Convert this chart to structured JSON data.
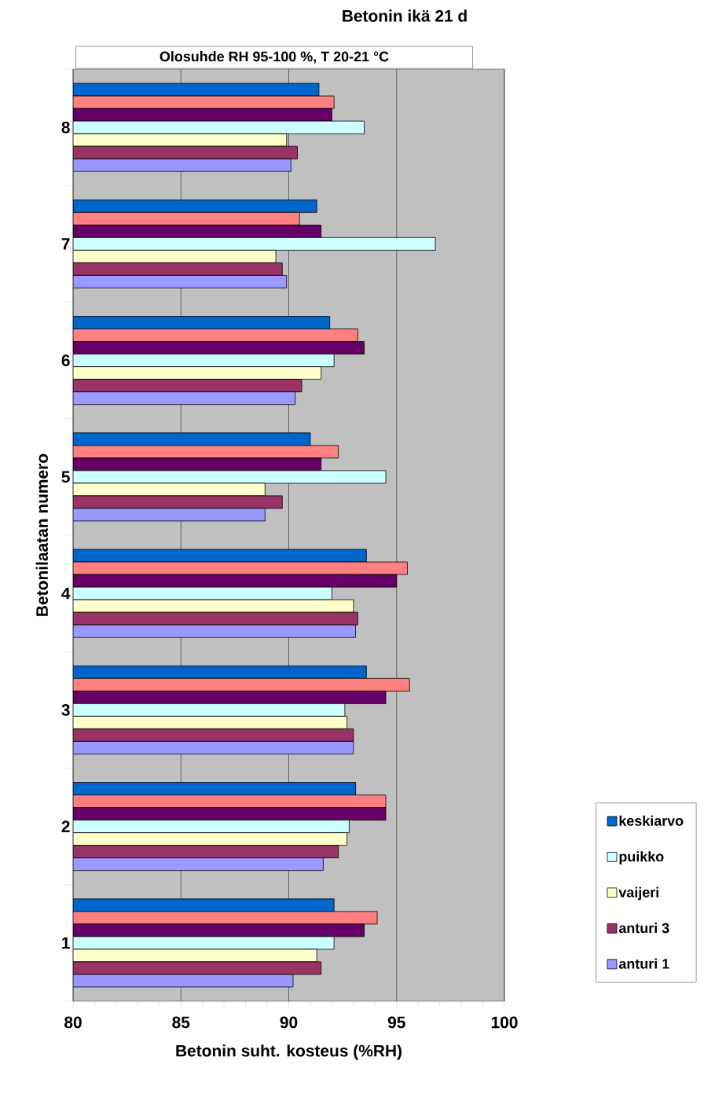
{
  "chart_data": {
    "type": "bar",
    "orientation": "horizontal",
    "title": "Betonin ikä 21 d",
    "xlabel": "Betonin suht. kosteus (%RH)",
    "ylabel": "Betonilaatan numero",
    "annotations": [
      "Olosuhde  RH 95-100 %, T 20-21 °C"
    ],
    "categories": [
      "8",
      "7",
      "6",
      "5",
      "4",
      "3",
      "2",
      "1"
    ],
    "xlim": [
      80,
      100
    ],
    "xticks": [
      80,
      85,
      90,
      95,
      100
    ],
    "grid": "x",
    "legend": "bottom right",
    "series": [
      {
        "name": "keskiarvo",
        "color": "#0066cc",
        "values": [
          91.4,
          91.3,
          91.9,
          91.0,
          93.6,
          93.6,
          93.1,
          92.1
        ]
      },
      {
        "color": "#ff8080",
        "values": [
          92.1,
          90.5,
          93.2,
          92.3,
          95.5,
          95.6,
          94.5,
          94.1
        ]
      },
      {
        "color": "#660066",
        "values": [
          92.0,
          91.5,
          93.5,
          91.5,
          95.0,
          94.5,
          94.5,
          93.5
        ]
      },
      {
        "name": "puikko",
        "color": "#ccffff",
        "values": [
          93.5,
          96.8,
          92.1,
          94.5,
          92.0,
          92.6,
          92.8,
          92.1
        ]
      },
      {
        "name": "vaijeri",
        "color": "#ffffcc",
        "values": [
          89.9,
          89.4,
          91.5,
          88.9,
          93.0,
          92.7,
          92.7,
          91.3
        ]
      },
      {
        "name": "anturi 3",
        "color": "#993366",
        "values": [
          90.4,
          89.7,
          90.6,
          89.7,
          93.2,
          93.0,
          92.3,
          91.5
        ]
      },
      {
        "name": "anturi 1",
        "color": "#9999ff",
        "values": [
          90.1,
          89.9,
          90.3,
          88.9,
          93.1,
          93.0,
          91.6,
          90.2
        ]
      }
    ]
  }
}
